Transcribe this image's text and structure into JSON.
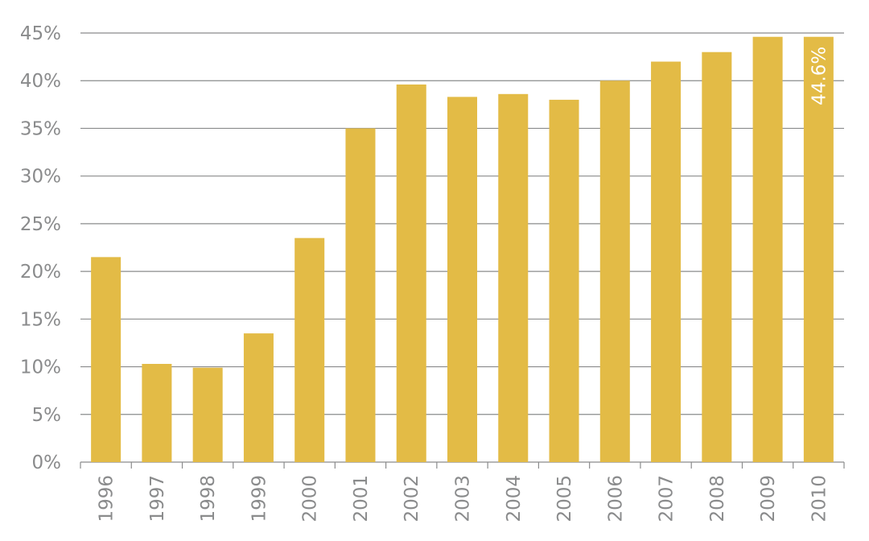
{
  "chart_data": {
    "type": "bar",
    "categories": [
      "1996",
      "1997",
      "1998",
      "1999",
      "2000",
      "2001",
      "2002",
      "2003",
      "2004",
      "2005",
      "2006",
      "2007",
      "2008",
      "2009",
      "2010"
    ],
    "values": [
      21.5,
      10.3,
      9.9,
      13.5,
      23.5,
      35.0,
      39.6,
      38.3,
      38.6,
      38.0,
      40.0,
      42.0,
      43.0,
      44.6,
      44.6
    ],
    "y_ticks": [
      "0%",
      "5%",
      "10%",
      "15%",
      "20%",
      "25%",
      "30%",
      "35%",
      "40%",
      "45%"
    ],
    "ylim": [
      0,
      45
    ],
    "grid": true,
    "data_labels": [
      {
        "category": "2010",
        "text": "44.6%"
      }
    ],
    "colors": {
      "bar": "#e3bb46",
      "grid": "#8a8b8c",
      "tick_text": "#8a8b8c",
      "data_label": "#ffffff"
    }
  }
}
